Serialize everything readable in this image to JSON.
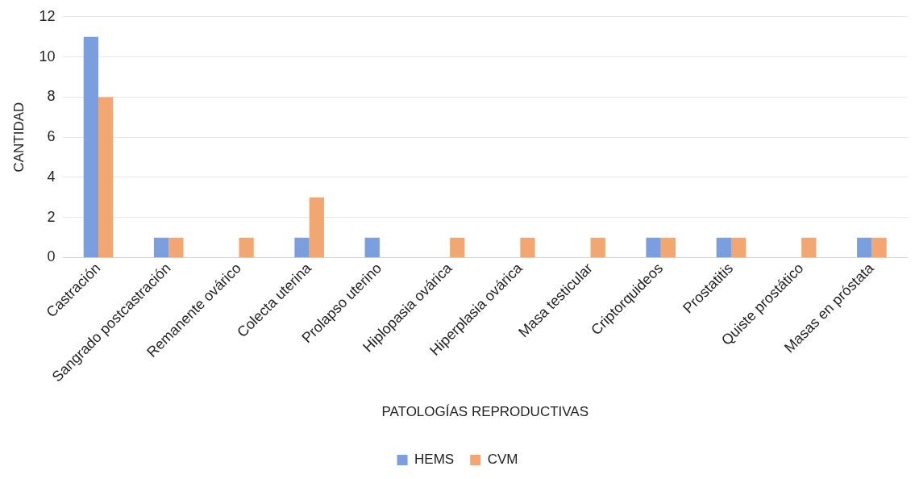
{
  "chart_data": {
    "type": "bar",
    "xlabel": "PATOLOGÍAS REPRODUCTIVAS",
    "ylabel": "CANTIDAD",
    "categories": [
      "Castración",
      "Sangrado postcastración",
      "Remanente ovárico",
      "Colecta uterina",
      "Prolapso uterino",
      "Hiplopasia ovárica",
      "Hiperplasia ovárica",
      "Masa testicular",
      "Criptorquideos",
      "Prostatitis",
      "Quiste prostático",
      "Masas en próstata"
    ],
    "series": [
      {
        "name": "HEMS",
        "color": "#7a9ede",
        "values": [
          11,
          1,
          0,
          1,
          1,
          0,
          0,
          0,
          1,
          1,
          0,
          1
        ]
      },
      {
        "name": "CVM",
        "color": "#f2a772",
        "values": [
          8,
          1,
          1,
          3,
          0,
          1,
          1,
          1,
          1,
          1,
          1,
          1
        ]
      }
    ],
    "ylim": [
      0,
      12
    ],
    "yticks": [
      0,
      2,
      4,
      6,
      8,
      10,
      12
    ],
    "grid": "y",
    "legend": "bottom"
  }
}
